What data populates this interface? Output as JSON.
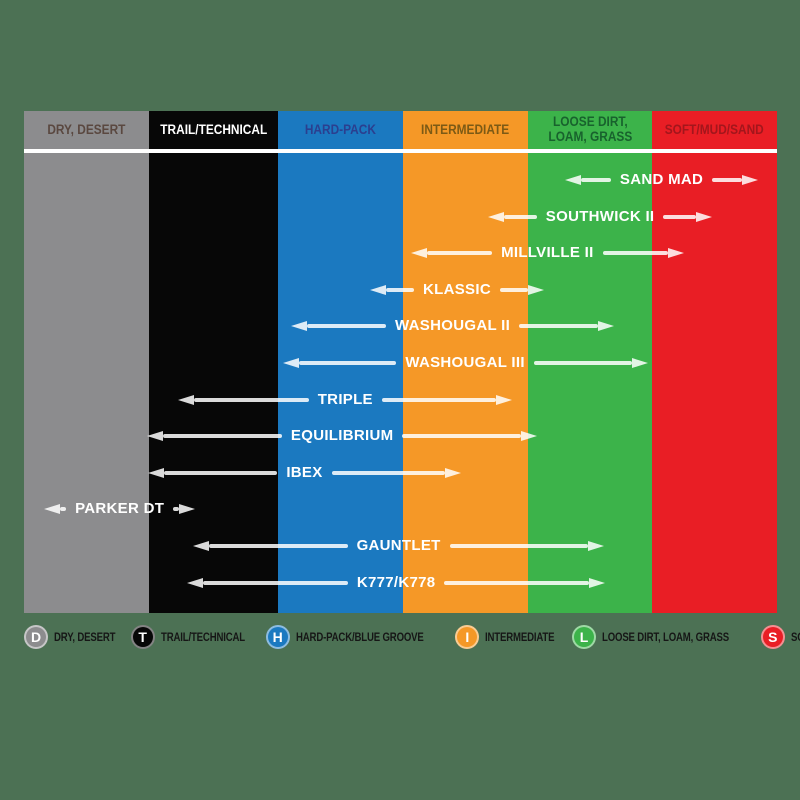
{
  "background_color": "#4c7154",
  "arrow_color": "rgba(255,255,255,0.85)",
  "header_divider_color": "#ffffff",
  "header": {
    "columns": [
      {
        "label": "DRY, DESERT",
        "bg": "#8c8c8e",
        "text_color": "#5a4840"
      },
      {
        "label": "TRAIL/TECHNICAL",
        "bg": "#070707",
        "text_color": "#ffffff"
      },
      {
        "label": "HARD-PACK",
        "bg": "#1b79c0",
        "text_color": "#2b3f8f"
      },
      {
        "label": "INTERMEDIATE",
        "bg": "#f59827",
        "text_color": "#7c5a15"
      },
      {
        "label": "LOOSE DIRT, LOAM, GRASS",
        "bg": "#3cb34a",
        "text_color": "#18622d"
      },
      {
        "label": "SOFT/MUD/SAND",
        "bg": "#e91e25",
        "text_color": "#a3161c"
      }
    ]
  },
  "chart_data": {
    "type": "bar",
    "orientation": "horizontal-range",
    "title": "",
    "terrain_axis": {
      "range": [
        0,
        6
      ],
      "categories": [
        "DRY, DESERT",
        "TRAIL/TECHNICAL",
        "HARD-PACK",
        "INTERMEDIATE",
        "LOOSE DIRT, LOAM, GRASS",
        "SOFT/MUD/SAND"
      ]
    },
    "tires": [
      {
        "name": "SAND MAD",
        "start": 4.31,
        "end": 5.85
      },
      {
        "name": "SOUTHWICK II",
        "start": 3.7,
        "end": 5.48
      },
      {
        "name": "MILLVILLE II",
        "start": 3.08,
        "end": 5.26
      },
      {
        "name": "KLASSIC",
        "start": 2.76,
        "end": 4.14
      },
      {
        "name": "WASHOUGAL II",
        "start": 2.13,
        "end": 4.7
      },
      {
        "name": "WASHOUGAL III",
        "start": 2.06,
        "end": 4.97
      },
      {
        "name": "TRIPLE",
        "start": 1.23,
        "end": 3.89
      },
      {
        "name": "EQUILIBRIUM",
        "start": 0.98,
        "end": 4.09
      },
      {
        "name": "IBEX",
        "start": 0.99,
        "end": 3.48
      },
      {
        "name": "PARKER DT",
        "start": 0.16,
        "end": 1.35
      },
      {
        "name": "GAUNTLET",
        "start": 1.35,
        "end": 4.62
      },
      {
        "name": "K777/K778",
        "start": 1.3,
        "end": 4.63
      }
    ]
  },
  "legend": {
    "items": [
      {
        "letter": "D",
        "label": "DRY, DESERT",
        "color": "#8c8c8e"
      },
      {
        "letter": "T",
        "label": "TRAIL/TECHNICAL",
        "color": "#070707"
      },
      {
        "letter": "H",
        "label": "HARD-PACK/BLUE GROOVE",
        "color": "#1b79c0"
      },
      {
        "letter": "I",
        "label": "INTERMEDIATE",
        "color": "#f59827"
      },
      {
        "letter": "L",
        "label": "LOOSE DIRT, LOAM, GRASS",
        "color": "#3cb34a"
      },
      {
        "letter": "S",
        "label": "SOFT/MUD/SAND",
        "color": "#e91e25"
      }
    ]
  }
}
